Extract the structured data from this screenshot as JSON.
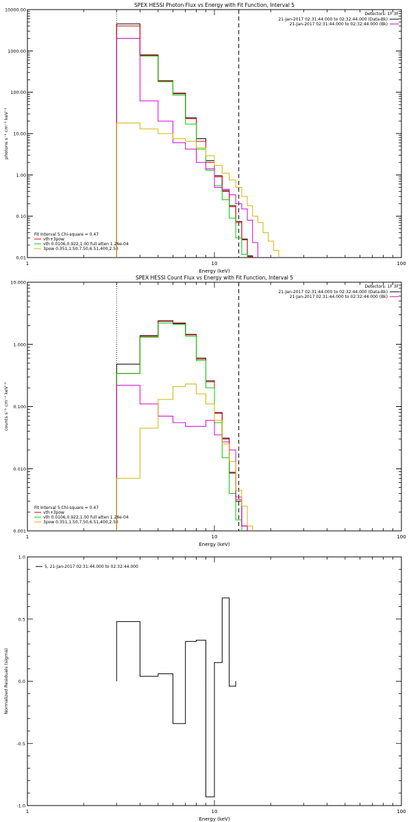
{
  "chart_data": [
    {
      "type": "line",
      "step": true,
      "title": "SPEX HESSI Photon Flux vs Energy with Fit Function, Interval 5",
      "xlabel": "Energy (keV)",
      "ylabel": "photons s⁻¹ cm⁻² keV⁻¹",
      "xscale": "log",
      "yscale": "log",
      "xlim": [
        1,
        100
      ],
      "ylim": [
        0.01,
        10000
      ],
      "x_ticks": [
        "1",
        "10",
        "100"
      ],
      "y_ticks": [
        "0.01",
        "0.10",
        "1.00",
        "10.00",
        "100.00",
        "1000.00",
        "10000.00"
      ],
      "header": {
        "detectors": "Detectors: 1F 3F",
        "lines": [
          "21-Jan-2017 02:31:44.000 to 02:32:44.000 (Data-Bk)",
          "21-Jan-2017 02:31:44.000 to 02:32:44.000 (Bk)"
        ]
      },
      "fit_text": {
        "heading": "Fit Interval 5   Chi-square = 0.47",
        "lines": [
          "vth+3pow",
          "vth 0.0106,0.922,1.00  full atten 1.26e-04",
          "3pow 0.351,1.50,7.50,6.51,400,2.50"
        ]
      },
      "vlines": [
        {
          "x": 3.0,
          "style": "dotted"
        },
        {
          "x": 13.5,
          "style": "dashed"
        }
      ],
      "bin_edges": [
        3.0,
        4.0,
        5.0,
        6.0,
        7.0,
        8.0,
        9.0,
        10.0,
        11.0,
        12.0,
        13.0,
        14.0,
        15.0,
        16.0
      ],
      "series": [
        {
          "role": "data",
          "color": "#000000",
          "values": [
            4500,
            800,
            190,
            95,
            24,
            7.5,
            2.2,
            0.95,
            0.42,
            0.18,
            0.075,
            0.028,
            0.011
          ]
        },
        {
          "role": "total",
          "color": "#e00000",
          "values": [
            4000,
            780,
            185,
            92,
            23,
            6.5,
            2.0,
            0.9,
            0.4,
            0.17,
            0.07,
            0.027,
            0.0105
          ]
        },
        {
          "role": "thermal",
          "color": "#00c800",
          "values": [
            2000,
            750,
            180,
            85,
            17,
            4.2,
            1.3,
            0.55,
            0.25,
            0.09,
            0.03,
            0.012
          ]
        },
        {
          "role": "bkg",
          "color": "#d200d2",
          "values": [
            2000,
            62,
            20,
            6,
            4.2,
            2.0,
            1.4,
            0.5,
            0.45,
            0.33,
            0.2,
            0.15,
            0.08,
            0.023
          ]
        },
        {
          "role": "power",
          "color": "#d2b400",
          "values": [
            18,
            13,
            10,
            7.5,
            6.5,
            4.5,
            2.9,
            1.7,
            1.1,
            0.75,
            0.5,
            0.3,
            0.18,
            0.1,
            0.07,
            0.04,
            0.025,
            0.015
          ]
        }
      ]
    },
    {
      "type": "line",
      "step": true,
      "title": "SPEX HESSI Count Flux vs Energy with Fit Function, Interval 5",
      "xlabel": "Energy (keV)",
      "ylabel": "counts s⁻¹ cm⁻² keV⁻¹",
      "xscale": "log",
      "yscale": "log",
      "xlim": [
        1,
        100
      ],
      "ylim": [
        0.001,
        10
      ],
      "x_ticks": [
        "1",
        "10",
        "100"
      ],
      "y_ticks": [
        "0.001",
        "0.010",
        "0.100",
        "1.000",
        "10.000"
      ],
      "header": {
        "detectors": "Detectors: 1F 3F",
        "lines": [
          "21-Jan-2017 02:31:44.000 to 02:32:44.000 (Data-Bk)",
          "21-Jan-2017 02:31:44.000 to 02:32:44.000 (Bk)"
        ]
      },
      "fit_text": {
        "heading": "Fit Interval 5   Chi-square = 0.47",
        "lines": [
          "vth+3pow",
          "vth 0.0106,0.922,1.00  full atten 1.26e-04",
          "3pow 0.351,1.50,7.50,6.51,400,2.50"
        ]
      },
      "vlines": [
        {
          "x": 3.0,
          "style": "dotted"
        },
        {
          "x": 13.5,
          "style": "dashed"
        }
      ],
      "bin_edges": [
        3.0,
        4.0,
        5.0,
        6.0,
        7.0,
        8.0,
        9.0,
        10.0,
        11.0,
        12.0,
        13.0,
        14.0,
        15.0,
        16.0
      ],
      "series": [
        {
          "role": "data",
          "color": "#000000",
          "values": [
            0.48,
            1.38,
            2.4,
            2.2,
            1.45,
            0.6,
            0.26,
            0.08,
            0.031,
            0.0085,
            0.003,
            0.0012
          ]
        },
        {
          "role": "total",
          "color": "#e00000",
          "values": [
            0.34,
            1.35,
            2.35,
            2.15,
            1.42,
            0.58,
            0.25,
            0.078,
            0.03,
            0.0088,
            0.0032,
            0.0012
          ]
        },
        {
          "role": "thermal",
          "color": "#00c800",
          "values": [
            0.34,
            1.3,
            2.2,
            2.1,
            1.35,
            0.55,
            0.2,
            0.055,
            0.015,
            0.004,
            0.0015
          ]
        },
        {
          "role": "bkg",
          "color": "#d200d2",
          "values": [
            0.22,
            0.11,
            0.07,
            0.055,
            0.048,
            0.048,
            0.06,
            0.035,
            0.027,
            0.02,
            0.0035,
            0.0012
          ]
        },
        {
          "role": "power",
          "color": "#d2b400",
          "values": [
            0.007,
            0.045,
            0.13,
            0.21,
            0.23,
            0.16,
            0.11,
            0.06,
            0.025,
            0.013,
            0.0045,
            0.0025,
            0.0012
          ]
        }
      ]
    },
    {
      "type": "line",
      "step": true,
      "title": "",
      "xlabel": "Energy (keV)",
      "ylabel": "Normalized Residuals (sigma)",
      "xscale": "log",
      "yscale": "linear",
      "xlim": [
        1,
        100
      ],
      "ylim": [
        -1.0,
        1.0
      ],
      "x_ticks": [
        "1",
        "10",
        "100"
      ],
      "y_ticks": [
        "-1.0",
        "-0.5",
        "0.0",
        "0.5",
        "1.0"
      ],
      "legend": "5, 21-Jan-2017 02:31:44.000 to 02:32:44.000",
      "bin_edges": [
        3.0,
        4.0,
        5.0,
        6.0,
        7.0,
        8.0,
        9.0,
        10.0,
        11.0,
        12.0,
        13.0
      ],
      "series": [
        {
          "role": "residuals",
          "color": "#000000",
          "values": [
            0.48,
            0.04,
            0.06,
            -0.34,
            0.32,
            0.33,
            -0.93,
            0.15,
            0.67,
            -0.04
          ]
        }
      ]
    }
  ]
}
